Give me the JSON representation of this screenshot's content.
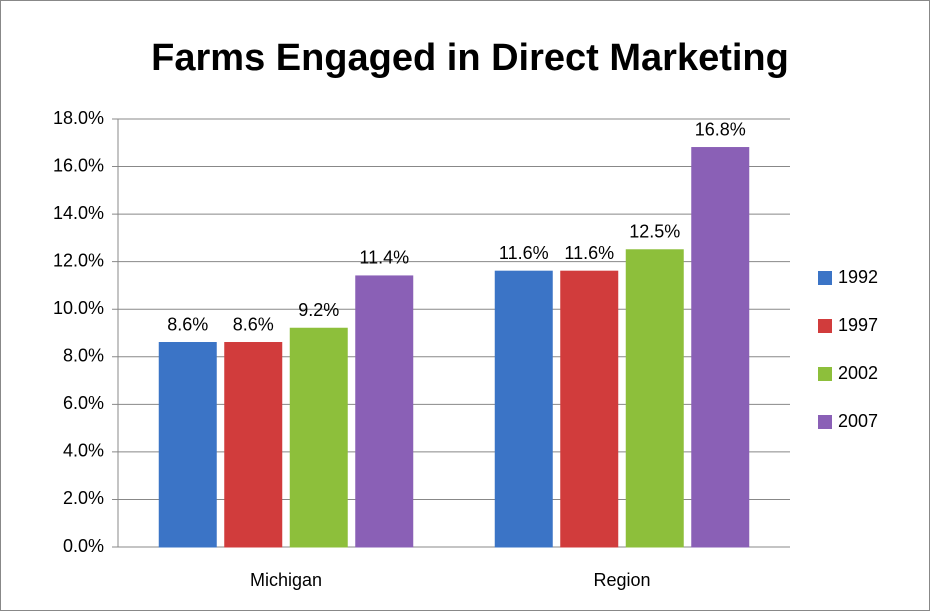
{
  "chart_data": {
    "type": "bar",
    "title": "Farms Engaged in Direct Marketing",
    "categories": [
      "Michigan",
      "Region"
    ],
    "series": [
      {
        "name": "1992",
        "color": "#3b74c6",
        "values": [
          8.6,
          11.6
        ],
        "value_labels": [
          "8.6%",
          "11.6%"
        ]
      },
      {
        "name": "1997",
        "color": "#d13c3c",
        "values": [
          8.6,
          11.6
        ],
        "value_labels": [
          "8.6%",
          "11.6%"
        ]
      },
      {
        "name": "2002",
        "color": "#8dbf3b",
        "values": [
          9.2,
          12.5
        ],
        "value_labels": [
          "9.2%",
          "12.5%"
        ]
      },
      {
        "name": "2007",
        "color": "#8a60b6",
        "values": [
          11.4,
          16.8
        ],
        "value_labels": [
          "11.4%",
          "16.8%"
        ]
      }
    ],
    "ylim": [
      0,
      18
    ],
    "yticks": [
      {
        "value": 0,
        "label": "0.0%"
      },
      {
        "value": 2,
        "label": "2.0%"
      },
      {
        "value": 4,
        "label": "4.0%"
      },
      {
        "value": 6,
        "label": "6.0%"
      },
      {
        "value": 8,
        "label": "8.0%"
      },
      {
        "value": 10,
        "label": "10.0%"
      },
      {
        "value": 12,
        "label": "12.0%"
      },
      {
        "value": 14,
        "label": "14.0%"
      },
      {
        "value": 16,
        "label": "16.0%"
      },
      {
        "value": 18,
        "label": "18.0%"
      }
    ],
    "grid": true,
    "legend": "right"
  }
}
